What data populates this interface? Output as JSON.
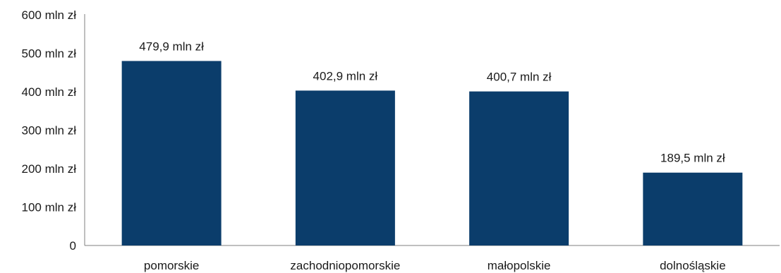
{
  "chart_data": {
    "type": "bar",
    "title": "",
    "xlabel": "",
    "ylabel": "",
    "categories": [
      "pomorskie",
      "zachodniopomorskie",
      "małopolskie",
      "dolnośląskie"
    ],
    "values": [
      479.9,
      402.9,
      400.7,
      189.5
    ],
    "data_labels": [
      "479,9 mln zł",
      "402,9 mln zł",
      "400,7 mln zł",
      "189,5 mln zł"
    ],
    "ylim": [
      0,
      600
    ],
    "yticks": [
      0,
      100,
      200,
      300,
      400,
      500,
      600
    ],
    "ytick_labels": [
      "0",
      "100 mln zł",
      "200 mln zł",
      "300 mln zł",
      "400 mln zł",
      "500 mln zł",
      "600 mln zł"
    ],
    "grid": false,
    "legend": "none",
    "bar_color": "#0b3d6b"
  }
}
